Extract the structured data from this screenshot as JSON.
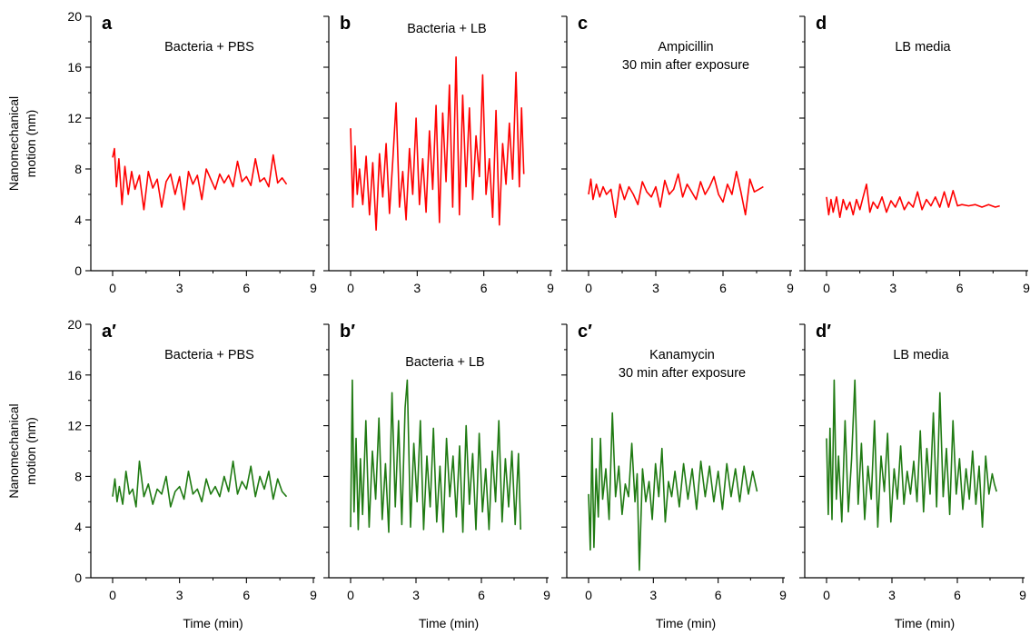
{
  "chart_data": [
    {
      "id": "a",
      "type": "line",
      "letter": "a",
      "title_lines": [
        "Bacteria + PBS"
      ],
      "xlabel": "",
      "ylabel_lines": [
        "Nanomechanical",
        "motion (nm)"
      ],
      "xlim": [
        0,
        9
      ],
      "ylim": [
        0,
        20
      ],
      "xticks": [
        0,
        3,
        6,
        9
      ],
      "yticks": [
        0,
        4,
        8,
        12,
        16,
        20
      ],
      "color": "#ff0000",
      "series": [
        {
          "x": [
            0,
            0.08,
            0.17,
            0.28,
            0.42,
            0.55,
            0.7,
            0.85,
            1.0,
            1.2,
            1.4,
            1.6,
            1.8,
            2.0,
            2.2,
            2.4,
            2.6,
            2.8,
            3.0,
            3.2,
            3.4,
            3.6,
            3.8,
            4.0,
            4.2,
            4.4,
            4.6,
            4.8,
            5.0,
            5.2,
            5.4,
            5.6,
            5.8,
            6.0,
            6.2,
            6.4,
            6.6,
            6.8,
            7.0,
            7.2,
            7.4,
            7.6,
            7.8
          ],
          "y": [
            8.9,
            9.6,
            6.6,
            8.8,
            5.2,
            8.2,
            6.0,
            7.8,
            6.4,
            7.5,
            4.8,
            7.8,
            6.5,
            7.2,
            5.0,
            7.0,
            7.6,
            6.0,
            7.4,
            4.8,
            7.8,
            6.8,
            7.5,
            5.6,
            8.0,
            7.2,
            6.4,
            7.6,
            6.9,
            7.5,
            6.6,
            8.6,
            7.0,
            7.4,
            6.7,
            8.8,
            7.0,
            7.3,
            6.6,
            9.1,
            6.9,
            7.3,
            6.8
          ]
        }
      ]
    },
    {
      "id": "b",
      "type": "line",
      "letter": "b",
      "title_lines": [
        "Bacteria + LB"
      ],
      "xlabel": "",
      "ylabel_lines": [],
      "xlim": [
        0,
        9
      ],
      "ylim": [
        0,
        20
      ],
      "xticks": [
        0,
        3,
        6,
        9
      ],
      "yticks": [
        0,
        4,
        8,
        12,
        16,
        20
      ],
      "color": "#ff0000",
      "series": [
        {
          "x": [
            0,
            0.1,
            0.2,
            0.3,
            0.4,
            0.55,
            0.7,
            0.85,
            1.0,
            1.15,
            1.3,
            1.45,
            1.6,
            1.75,
            1.9,
            2.05,
            2.2,
            2.35,
            2.5,
            2.65,
            2.8,
            2.95,
            3.1,
            3.25,
            3.4,
            3.55,
            3.7,
            3.85,
            4.0,
            4.15,
            4.3,
            4.45,
            4.6,
            4.75,
            4.9,
            5.05,
            5.2,
            5.35,
            5.5,
            5.65,
            5.8,
            5.95,
            6.1,
            6.25,
            6.4,
            6.55,
            6.7,
            6.85,
            7.0,
            7.15,
            7.3,
            7.45,
            7.6,
            7.7,
            7.8
          ],
          "y": [
            11.2,
            5.0,
            9.8,
            6.0,
            8.0,
            5.2,
            9.0,
            4.4,
            8.5,
            3.2,
            9.2,
            5.8,
            10.0,
            4.5,
            8.6,
            13.2,
            5.0,
            7.8,
            4.0,
            9.6,
            6.0,
            12.0,
            5.2,
            8.8,
            4.6,
            11.0,
            6.4,
            13.0,
            3.8,
            12.4,
            7.0,
            14.6,
            5.0,
            16.8,
            4.4,
            13.8,
            6.6,
            12.8,
            5.6,
            10.6,
            7.4,
            15.4,
            6.0,
            8.8,
            4.2,
            12.6,
            3.6,
            10.0,
            6.8,
            11.6,
            7.2,
            15.6,
            6.6,
            12.8,
            7.6
          ]
        }
      ]
    },
    {
      "id": "c",
      "type": "line",
      "letter": "c",
      "title_lines": [
        "Ampicillin",
        "30 min after exposure"
      ],
      "xlabel": "",
      "ylabel_lines": [],
      "xlim": [
        0,
        9
      ],
      "ylim": [
        0,
        20
      ],
      "xticks": [
        0,
        3,
        6,
        9
      ],
      "yticks": [
        0,
        4,
        8,
        12,
        16,
        20
      ],
      "color": "#ff0000",
      "series": [
        {
          "x": [
            0,
            0.1,
            0.2,
            0.35,
            0.5,
            0.65,
            0.8,
            1.0,
            1.2,
            1.4,
            1.6,
            1.8,
            2.0,
            2.2,
            2.4,
            2.6,
            2.8,
            3.0,
            3.2,
            3.4,
            3.6,
            3.8,
            4.0,
            4.2,
            4.4,
            4.6,
            4.8,
            5.0,
            5.2,
            5.4,
            5.6,
            5.8,
            6.0,
            6.2,
            6.4,
            6.6,
            6.8,
            7.0,
            7.2,
            7.4,
            7.6,
            7.8
          ],
          "y": [
            6.0,
            7.2,
            5.6,
            6.8,
            5.8,
            6.6,
            6.0,
            6.4,
            4.2,
            6.8,
            5.6,
            6.6,
            6.0,
            5.2,
            7.0,
            6.2,
            5.8,
            6.6,
            5.0,
            7.1,
            6.0,
            6.4,
            7.6,
            5.8,
            6.8,
            6.2,
            5.6,
            7.0,
            6.0,
            6.6,
            7.4,
            6.0,
            5.4,
            6.8,
            6.0,
            7.8,
            6.2,
            4.4,
            7.2,
            6.2,
            6.4,
            6.6
          ]
        }
      ]
    },
    {
      "id": "d",
      "type": "line",
      "letter": "d",
      "title_lines": [
        "LB media"
      ],
      "xlabel": "",
      "ylabel_lines": [],
      "xlim": [
        0,
        9
      ],
      "ylim": [
        0,
        20
      ],
      "xticks": [
        0,
        3,
        6,
        9
      ],
      "yticks": [
        0,
        4,
        8,
        12,
        16,
        20
      ],
      "color": "#ff0000",
      "series": [
        {
          "x": [
            0,
            0.1,
            0.2,
            0.3,
            0.45,
            0.6,
            0.75,
            0.9,
            1.05,
            1.2,
            1.35,
            1.5,
            1.65,
            1.8,
            1.95,
            2.1,
            2.3,
            2.5,
            2.7,
            2.9,
            3.1,
            3.3,
            3.5,
            3.7,
            3.9,
            4.1,
            4.3,
            4.5,
            4.7,
            4.9,
            5.1,
            5.3,
            5.5,
            5.7,
            5.9,
            6.1,
            6.4,
            6.7,
            7.0,
            7.3,
            7.6,
            7.8
          ],
          "y": [
            5.8,
            4.4,
            5.6,
            4.6,
            5.8,
            4.2,
            5.6,
            4.8,
            5.4,
            4.4,
            5.6,
            4.8,
            5.8,
            6.8,
            4.6,
            5.4,
            4.9,
            5.8,
            4.6,
            5.5,
            5.0,
            5.8,
            4.8,
            5.4,
            5.0,
            6.2,
            4.8,
            5.6,
            5.1,
            5.8,
            5.0,
            6.2,
            5.0,
            6.3,
            5.1,
            5.2,
            5.1,
            5.2,
            5.0,
            5.2,
            5.0,
            5.1
          ]
        }
      ]
    },
    {
      "id": "a2",
      "type": "line",
      "letter": "a′",
      "title_lines": [
        "Bacteria + PBS"
      ],
      "xlabel": "Time (min)",
      "ylabel_lines": [
        "Nanomechanical",
        "motion (nm)"
      ],
      "xlim": [
        0,
        9
      ],
      "ylim": [
        0,
        20
      ],
      "xticks": [
        0,
        3,
        6,
        9
      ],
      "yticks": [
        0,
        4,
        8,
        12,
        16,
        20
      ],
      "color": "#1f7a12",
      "series": [
        {
          "x": [
            0,
            0.1,
            0.2,
            0.3,
            0.45,
            0.6,
            0.75,
            0.9,
            1.05,
            1.2,
            1.4,
            1.6,
            1.8,
            2.0,
            2.2,
            2.4,
            2.6,
            2.8,
            3.0,
            3.2,
            3.4,
            3.6,
            3.8,
            4.0,
            4.2,
            4.4,
            4.6,
            4.8,
            5.0,
            5.2,
            5.4,
            5.6,
            5.8,
            6.0,
            6.2,
            6.4,
            6.6,
            6.8,
            7.0,
            7.2,
            7.4,
            7.6,
            7.8
          ],
          "y": [
            6.4,
            7.8,
            6.0,
            7.2,
            5.8,
            8.4,
            6.6,
            7.0,
            5.6,
            9.2,
            6.4,
            7.4,
            5.8,
            7.0,
            6.6,
            8.0,
            5.6,
            6.8,
            7.2,
            6.2,
            8.4,
            6.6,
            7.0,
            6.0,
            7.8,
            6.6,
            7.2,
            6.4,
            8.0,
            6.8,
            9.2,
            6.6,
            7.6,
            7.0,
            8.8,
            6.4,
            8.0,
            7.0,
            8.4,
            6.2,
            7.8,
            6.8,
            6.4
          ]
        }
      ]
    },
    {
      "id": "b2",
      "type": "line",
      "letter": "b′",
      "title_lines": [
        "Bacteria + LB"
      ],
      "xlabel": "Time (min)",
      "ylabel_lines": [],
      "xlim": [
        0,
        9
      ],
      "ylim": [
        0,
        20
      ],
      "xticks": [
        0,
        3,
        6,
        9
      ],
      "yticks": [
        0,
        4,
        8,
        12,
        16,
        20
      ],
      "color": "#1f7a12",
      "series": [
        {
          "x": [
            0,
            0.08,
            0.16,
            0.25,
            0.35,
            0.45,
            0.55,
            0.7,
            0.85,
            1.0,
            1.15,
            1.3,
            1.45,
            1.6,
            1.75,
            1.9,
            2.05,
            2.2,
            2.35,
            2.5,
            2.6,
            2.75,
            2.9,
            3.05,
            3.2,
            3.35,
            3.5,
            3.65,
            3.8,
            3.95,
            4.1,
            4.25,
            4.4,
            4.55,
            4.7,
            4.85,
            5.0,
            5.15,
            5.3,
            5.45,
            5.6,
            5.75,
            5.9,
            6.05,
            6.2,
            6.35,
            6.5,
            6.65,
            6.8,
            6.95,
            7.1,
            7.25,
            7.4,
            7.55,
            7.7,
            7.8
          ],
          "y": [
            4.0,
            15.6,
            5.2,
            11.0,
            3.8,
            9.4,
            5.0,
            12.4,
            4.0,
            10.0,
            6.2,
            12.6,
            4.6,
            9.0,
            3.6,
            14.6,
            5.6,
            12.4,
            4.2,
            13.4,
            15.6,
            4.0,
            10.6,
            6.0,
            12.4,
            3.8,
            9.6,
            5.6,
            11.8,
            4.4,
            8.8,
            3.6,
            11.0,
            6.4,
            9.6,
            4.8,
            10.4,
            3.6,
            12.0,
            5.8,
            9.8,
            3.8,
            11.4,
            5.2,
            8.6,
            3.8,
            10.0,
            6.0,
            12.4,
            4.4,
            9.4,
            5.6,
            10.0,
            4.2,
            9.8,
            3.8
          ]
        }
      ]
    },
    {
      "id": "c2",
      "type": "line",
      "letter": "c′",
      "title_lines": [
        "Kanamycin",
        "30 min after exposure"
      ],
      "xlabel": "Time (min)",
      "ylabel_lines": [],
      "xlim": [
        0,
        9
      ],
      "ylim": [
        0,
        20
      ],
      "xticks": [
        0,
        3,
        6,
        9
      ],
      "yticks": [
        0,
        4,
        8,
        12,
        16,
        20
      ],
      "color": "#1f7a12",
      "series": [
        {
          "x": [
            0,
            0.08,
            0.16,
            0.25,
            0.35,
            0.45,
            0.55,
            0.65,
            0.8,
            0.95,
            1.1,
            1.25,
            1.4,
            1.55,
            1.7,
            1.85,
            2.0,
            2.15,
            2.25,
            2.35,
            2.5,
            2.65,
            2.8,
            2.95,
            3.1,
            3.25,
            3.4,
            3.55,
            3.7,
            3.85,
            4.0,
            4.2,
            4.4,
            4.6,
            4.8,
            5.0,
            5.2,
            5.4,
            5.6,
            5.8,
            6.0,
            6.2,
            6.4,
            6.6,
            6.8,
            7.0,
            7.2,
            7.4,
            7.6,
            7.8
          ],
          "y": [
            6.6,
            2.2,
            11.0,
            2.4,
            8.6,
            4.8,
            11.0,
            6.2,
            8.6,
            4.6,
            13.0,
            6.4,
            8.8,
            5.0,
            7.4,
            6.4,
            10.6,
            6.0,
            8.2,
            0.6,
            8.6,
            6.0,
            7.6,
            4.6,
            9.0,
            6.4,
            10.2,
            4.4,
            7.6,
            6.4,
            8.4,
            5.6,
            9.0,
            6.2,
            8.6,
            5.4,
            9.2,
            6.4,
            8.8,
            6.0,
            8.4,
            5.4,
            9.0,
            6.4,
            8.6,
            6.0,
            8.8,
            6.6,
            8.4,
            6.8
          ]
        }
      ]
    },
    {
      "id": "d2",
      "type": "line",
      "letter": "d′",
      "title_lines": [
        "LB media"
      ],
      "xlabel": "Time (min)",
      "ylabel_lines": [],
      "xlim": [
        0,
        9
      ],
      "ylim": [
        0,
        20
      ],
      "xticks": [
        0,
        3,
        6,
        9
      ],
      "yticks": [
        0,
        4,
        8,
        12,
        16,
        20
      ],
      "color": "#1f7a12",
      "series": [
        {
          "x": [
            0,
            0.08,
            0.16,
            0.25,
            0.35,
            0.45,
            0.55,
            0.7,
            0.85,
            1.0,
            1.15,
            1.3,
            1.45,
            1.6,
            1.75,
            1.9,
            2.05,
            2.2,
            2.35,
            2.5,
            2.65,
            2.8,
            2.95,
            3.1,
            3.25,
            3.4,
            3.55,
            3.7,
            3.85,
            4.0,
            4.15,
            4.3,
            4.45,
            4.6,
            4.75,
            4.9,
            5.05,
            5.2,
            5.35,
            5.5,
            5.65,
            5.8,
            5.95,
            6.1,
            6.25,
            6.4,
            6.55,
            6.7,
            6.85,
            7.0,
            7.15,
            7.3,
            7.45,
            7.6,
            7.7,
            7.8
          ],
          "y": [
            11.0,
            5.0,
            11.8,
            4.6,
            15.6,
            6.2,
            9.6,
            4.4,
            12.4,
            5.2,
            9.4,
            15.6,
            5.8,
            10.6,
            4.6,
            8.8,
            6.2,
            12.4,
            4.0,
            9.6,
            6.8,
            11.4,
            4.4,
            8.6,
            6.2,
            10.4,
            5.8,
            8.4,
            6.6,
            9.2,
            6.0,
            11.6,
            5.2,
            10.2,
            6.6,
            13.0,
            5.6,
            14.6,
            6.4,
            10.2,
            5.0,
            12.4,
            6.6,
            9.4,
            5.4,
            8.6,
            6.2,
            10.0,
            5.8,
            8.8,
            4.0,
            9.6,
            6.6,
            8.2,
            7.4,
            6.8
          ]
        }
      ]
    }
  ]
}
